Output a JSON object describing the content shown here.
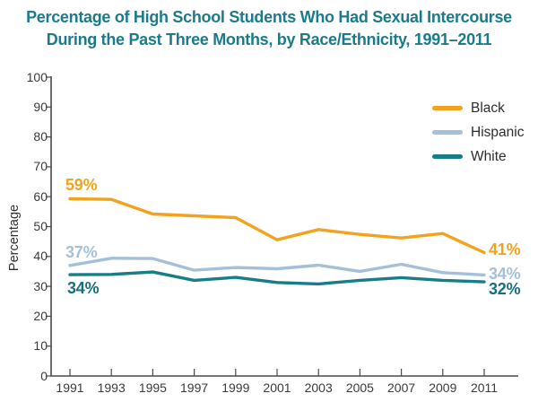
{
  "title": {
    "line1": "Percentage of High School Students Who Had Sexual Intercourse",
    "line2": "During the Past Three Months, by Race/Ethnicity, 1991–2011"
  },
  "colors": {
    "title": "#1B7A8C",
    "black_line": "#F2A31B",
    "hispanic_line": "#A4C0D8",
    "white_line": "#177E88",
    "white_label": "#156F7E",
    "axis": "#4A4A4A",
    "text": "#3A3A3A"
  },
  "axis": {
    "ylabel": "Percentage"
  },
  "legend": {
    "items": [
      {
        "label": "Black"
      },
      {
        "label": "Hispanic"
      },
      {
        "label": "White"
      }
    ]
  },
  "annotations": {
    "black_start": "59%",
    "hispanic_start": "37%",
    "white_start": "34%",
    "black_end": "41%",
    "hispanic_end": "34%",
    "white_end": "32%"
  },
  "chart_data": {
    "type": "line",
    "title": "Percentage of High School Students Who Had Sexual Intercourse During the Past Three Months, by Race/Ethnicity, 1991–2011",
    "x": [
      1991,
      1993,
      1995,
      1997,
      1999,
      2001,
      2003,
      2005,
      2007,
      2009,
      2011
    ],
    "series": [
      {
        "name": "Black",
        "color": "#F2A31B",
        "values": [
          59.3,
          59.1,
          54.2,
          53.6,
          53.0,
          45.6,
          49.0,
          47.4,
          46.2,
          47.7,
          41.3
        ]
      },
      {
        "name": "Hispanic",
        "color": "#A4C0D8",
        "values": [
          37.0,
          39.4,
          39.3,
          35.4,
          36.3,
          35.9,
          37.1,
          35.0,
          37.4,
          34.6,
          33.8
        ]
      },
      {
        "name": "White",
        "color": "#177E88",
        "values": [
          33.9,
          34.0,
          34.8,
          32.0,
          33.0,
          31.3,
          30.8,
          32.0,
          32.9,
          32.0,
          31.5
        ]
      }
    ],
    "xlabel": "",
    "ylabel": "Percentage",
    "ylim": [
      0,
      100
    ],
    "y_ticks": [
      0,
      10,
      20,
      30,
      40,
      50,
      60,
      70,
      80,
      90,
      100
    ],
    "grid": false,
    "legend_position": "top-right",
    "endpoint_labels": {
      "first": [
        "59%",
        "37%",
        "34%"
      ],
      "last": [
        "41%",
        "34%",
        "32%"
      ]
    }
  }
}
